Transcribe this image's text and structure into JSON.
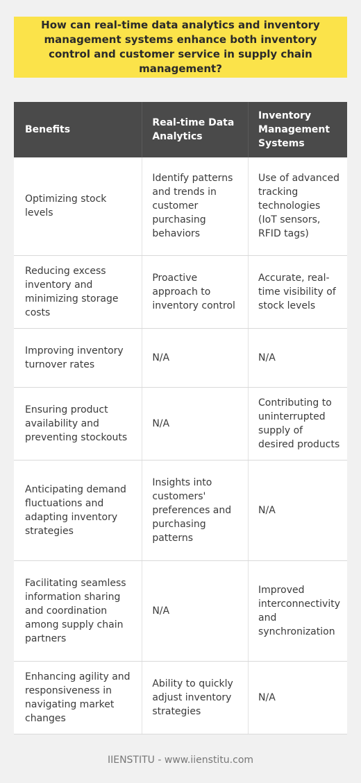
{
  "title": "How can real-time data analytics and inventory management systems enhance both inventory control and customer service in supply chain management?",
  "table": {
    "headers": [
      "Benefits",
      "Real-time Data Analytics",
      "Inventory Management Systems"
    ],
    "rows": [
      [
        "Optimizing stock levels",
        "Identify patterns and trends in customer purchasing behaviors",
        "Use of advanced tracking technologies (IoT sensors, RFID tags)"
      ],
      [
        "Reducing excess inventory and minimizing storage costs",
        "Proactive approach to inventory control",
        "Accurate, real-time visibility of stock levels"
      ],
      [
        "Improving inventory turnover rates",
        "N/A",
        "N/A"
      ],
      [
        "Ensuring product availability and preventing stockouts",
        "",
        "Contributing to uninterrupted supply of desired products"
      ],
      [
        "Anticipating demand fluctuations and adapting inventory strategies",
        "Insights into customers' preferences and purchasing patterns",
        "N/A"
      ],
      [
        "Facilitating seamless information sharing and coordination among supply chain partners",
        "N/A",
        "Improved interconnectivity and synchronization"
      ],
      [
        "Enhancing agility and responsiveness in navigating market changes",
        "Ability to quickly adjust inventory strategies",
        "N/A"
      ]
    ]
  },
  "footer": "IIENSTITU - www.iienstitu.com"
}
